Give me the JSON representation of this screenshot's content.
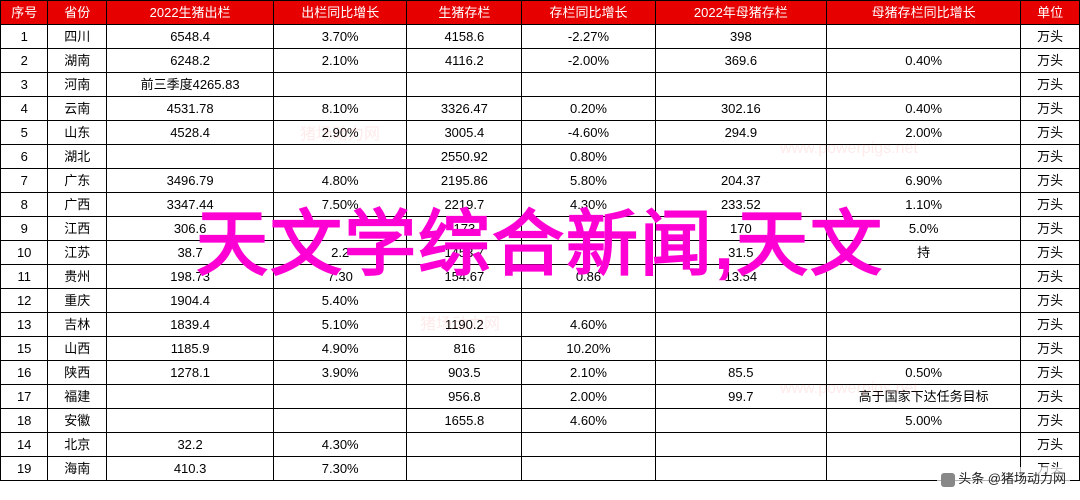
{
  "overlay": "天文学综合新闻,天文",
  "byline": "头条 @猪场动力网",
  "watermarks": [
    "猪场动力网",
    "猪场动力网",
    "www.powerpigs.net",
    "www.powerpigs.net"
  ],
  "columns": [
    "序号",
    "省份",
    "2022生猪出栏",
    "出栏同比增长",
    "生猪存栏",
    "存栏同比增长",
    "2022年母猪存栏",
    "母猪存栏同比增长",
    "单位"
  ],
  "rows": [
    [
      "1",
      "四川",
      "6548.4",
      "3.70%",
      "4158.6",
      "-2.27%",
      "398",
      "",
      "万头"
    ],
    [
      "2",
      "湖南",
      "6248.2",
      "2.10%",
      "4116.2",
      "-2.00%",
      "369.6",
      "0.40%",
      "万头"
    ],
    [
      "3",
      "河南",
      "前三季度4265.83",
      "",
      "",
      "",
      "",
      "",
      "万头"
    ],
    [
      "4",
      "云南",
      "4531.78",
      "8.10%",
      "3326.47",
      "0.20%",
      "302.16",
      "0.40%",
      "万头"
    ],
    [
      "5",
      "山东",
      "4528.4",
      "2.90%",
      "3005.4",
      "-4.60%",
      "294.9",
      "2.00%",
      "万头"
    ],
    [
      "6",
      "湖北",
      "",
      "",
      "2550.92",
      "0.80%",
      "",
      "",
      "万头"
    ],
    [
      "7",
      "广东",
      "3496.79",
      "4.80%",
      "2195.86",
      "5.80%",
      "204.37",
      "6.90%",
      "万头"
    ],
    [
      "8",
      "广西",
      "3347.44",
      "7.50%",
      "2219.7",
      "4.30%",
      "233.52",
      "1.10%",
      "万头"
    ],
    [
      "9",
      "江西",
      "306.6",
      "",
      "173",
      "",
      "170",
      "5.0%",
      "万头"
    ],
    [
      "10",
      "江苏",
      "38.7",
      "2.2",
      "1453.7",
      "",
      "31.5",
      "持",
      "万头"
    ],
    [
      "11",
      "贵州",
      "198.73",
      "7.30",
      "154.67",
      "0.86",
      "13.54",
      "",
      "万头"
    ],
    [
      "12",
      "重庆",
      "1904.4",
      "5.40%",
      "",
      "",
      "",
      "",
      "万头"
    ],
    [
      "13",
      "吉林",
      "1839.4",
      "5.10%",
      "1190.2",
      "4.60%",
      "",
      "",
      "万头"
    ],
    [
      "15",
      "山西",
      "1185.9",
      "4.90%",
      "816",
      "10.20%",
      "",
      "",
      "万头"
    ],
    [
      "16",
      "陕西",
      "1278.1",
      "3.90%",
      "903.5",
      "2.10%",
      "85.5",
      "0.50%",
      "万头"
    ],
    [
      "17",
      "福建",
      "",
      "",
      "956.8",
      "2.00%",
      "99.7",
      "高于国家下达任务目标",
      "万头"
    ],
    [
      "18",
      "安徽",
      "",
      "",
      "1655.8",
      "4.60%",
      "",
      "5.00%",
      "万头"
    ],
    [
      "14",
      "北京",
      "32.2",
      "4.30%",
      "",
      "",
      "",
      "",
      "万头"
    ],
    [
      "19",
      "海南",
      "410.3",
      "7.30%",
      "",
      "",
      "",
      "",
      "万头"
    ]
  ]
}
